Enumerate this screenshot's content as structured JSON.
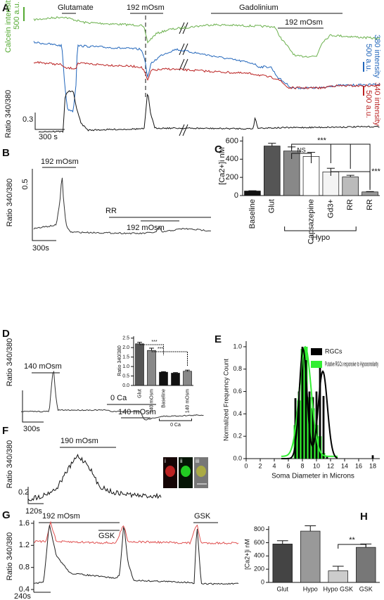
{
  "figure": {
    "A": {
      "label": "A",
      "glutamate": "Glutamate",
      "hypo": "192 mOsm",
      "gadolinium": "Gadolinium",
      "hypo2": "192 mOsm",
      "calcein": "Calcein intensity",
      "calcein_scale": "500 a.u.",
      "i380": "380 intensity",
      "i380_scale": "500 a.u.",
      "i340": "340 intensity",
      "i340_scale": "500 a.u.",
      "ratio": "Ratio 340/380",
      "ratio_scale": "0.3",
      "time": "300 s"
    },
    "B": {
      "label": "B",
      "hypo": "192 mOsm",
      "rr": "RR",
      "hypo2": "192 mOsm",
      "ratio": "Ratio 340/380",
      "ratio_scale": "0.5",
      "time": "300s"
    },
    "C": {
      "label": "C"
    },
    "D": {
      "label": "D",
      "hypo": "140 mOsm",
      "zero_ca": "0 Ca",
      "hypo2": "140 mOsm",
      "ratio": "Ratio 340/380",
      "time": "300s"
    },
    "E": {
      "label": "E"
    },
    "F": {
      "label": "F",
      "hypo": "190 mOsm",
      "ratio": "Ratio 340/380",
      "ratio_scale": "0.2",
      "time": "120s",
      "inset": [
        "i",
        "ii",
        "iii"
      ]
    },
    "G": {
      "label": "G",
      "hypo": "192 mOsm",
      "gsk": "GSK",
      "gsk2": "GSK",
      "time": "240s"
    },
    "H": {
      "label": "H"
    }
  },
  "chart_data": [
    {
      "type": "bar",
      "ylabel": "[Ca2+]i nM",
      "categories": [
        "Baseline",
        "Glut",
        null,
        "Capsazepine",
        "Gd3+",
        "RR",
        "RR"
      ],
      "values": [
        50,
        545,
        490,
        430,
        260,
        205,
        40
      ],
      "errors": [
        3,
        30,
        45,
        45,
        40,
        18,
        4
      ],
      "colors": [
        "#111111",
        "#555555",
        "#888888",
        "#ffffff",
        "#f4f4f4",
        "#bbbbbb",
        "#999999"
      ],
      "ylim": [
        0,
        650
      ],
      "yticks": [
        0,
        200,
        400,
        600
      ],
      "group_label": "Hypo",
      "annotations": [
        "***",
        "NS",
        "***"
      ]
    },
    {
      "type": "bar",
      "ylabel": "Ratio 340/380",
      "categories": [
        "Glut",
        "140 mOsm",
        "Baseline",
        null,
        "140 mOsm"
      ],
      "values": [
        2.2,
        1.85,
        0.7,
        0.65,
        0.75
      ],
      "errors": [
        0.08,
        0.12,
        0.03,
        0.03,
        0.06
      ],
      "colors": [
        "#555555",
        "#888888",
        "#111111",
        "#111111",
        "#888888"
      ],
      "ylim": [
        0,
        2.6
      ],
      "yticks": [
        {
          "value": 0,
          "label": "0.0"
        },
        0.5,
        {
          "value": 1,
          "label": "1.0"
        },
        1.5,
        {
          "value": 2,
          "label": "2.0"
        },
        2.5
      ],
      "group_label": "0 Ca",
      "annotations": [
        "***",
        "***"
      ]
    },
    {
      "type": "histogram",
      "xlabel": "Soma Diameter in Microns",
      "ylabel": "Normalized Frequency Count",
      "x": [
        7,
        7.5,
        8,
        8.5,
        9,
        9.5,
        10,
        10.5,
        11,
        11.5,
        18
      ],
      "series": [
        {
          "name": "Putative RGCs responsive to Hypoosmolarity",
          "color": "#33ee33",
          "values": [
            0.3,
            0.52,
            0.98,
            1.0,
            0.55,
            0.45,
            0.3,
            0.2,
            0.05,
            null,
            null
          ]
        },
        {
          "name": "RGCs",
          "color": "#000000",
          "values": [
            0.54,
            0.6,
            1.0,
            0.88,
            0.6,
            0.55,
            0.6,
            0.82,
            0.56,
            0.02,
            0.03
          ]
        }
      ],
      "xlim": [
        0,
        19
      ],
      "xticks": [
        0,
        2,
        4,
        6,
        8,
        10,
        12,
        14,
        16,
        18
      ],
      "ylim": [
        0,
        1.05
      ],
      "yticks": [
        {
          "value": 0,
          "label": "0.0"
        },
        0.2,
        0.4,
        0.6,
        0.8,
        {
          "value": 1,
          "label": "1.0"
        }
      ]
    },
    {
      "type": "bar",
      "ylabel": "[Ca2+]i nM",
      "categories": [
        "Glut",
        "Hypo",
        "Hypo GSK",
        "GSK"
      ],
      "values": [
        580,
        775,
        175,
        530
      ],
      "errors": [
        50,
        80,
        70,
        50
      ],
      "colors": [
        "#444444",
        "#999999",
        "#cccccc",
        "#777777"
      ],
      "ylim": [
        0,
        850
      ],
      "yticks": [
        0,
        200,
        400,
        600,
        800
      ],
      "annotations": [
        "**"
      ]
    },
    {
      "type": "line",
      "ylabel": "Ratio 340/380",
      "ylim": [
        0.35,
        1.65
      ],
      "yticks": [
        1.6,
        1.2,
        0.8,
        0.4
      ]
    }
  ]
}
